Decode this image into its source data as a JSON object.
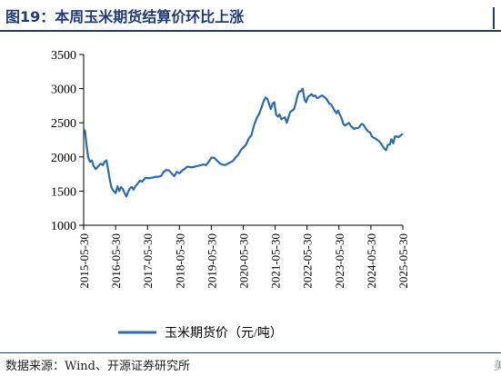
{
  "figure": {
    "title": "图19：本周玉米期货结算价环比上涨",
    "source": "数据来源：Wind、开源证券研究所",
    "edge_mark_bottom": "美"
  },
  "chart_data": {
    "type": "line",
    "title": "",
    "xlabel": "",
    "ylabel": "",
    "ylim": [
      1000,
      3500
    ],
    "yticks": [
      1000,
      1500,
      2000,
      2500,
      3000,
      3500
    ],
    "ytick_labels": [
      "1000",
      "1500",
      "2000",
      "2500",
      "3000",
      "3500"
    ],
    "xlim": [
      "2015-05-30",
      "2025-05-30"
    ],
    "xticks": [
      "2015-05-30",
      "2016-05-30",
      "2017-05-30",
      "2018-05-30",
      "2019-05-30",
      "2020-05-30",
      "2021-05-30",
      "2022-05-30",
      "2023-05-30",
      "2024-05-30",
      "2025-05-30"
    ],
    "grid": false,
    "legend": "bottom",
    "colors": {
      "series": "#2b6cb0",
      "axis": "#000000"
    },
    "series": [
      {
        "name": "玉米期货价（元/吨）",
        "x": [
          "2015-05-30",
          "2015-06-15",
          "2015-07-01",
          "2015-07-20",
          "2015-08-10",
          "2015-09-01",
          "2015-09-20",
          "2015-10-15",
          "2015-11-05",
          "2015-11-25",
          "2015-12-15",
          "2016-01-05",
          "2016-01-25",
          "2016-02-15",
          "2016-03-01",
          "2016-03-20",
          "2016-04-10",
          "2016-05-01",
          "2016-05-30",
          "2016-06-20",
          "2016-07-10",
          "2016-08-01",
          "2016-08-20",
          "2016-09-10",
          "2016-09-30",
          "2016-10-20",
          "2016-11-10",
          "2016-12-01",
          "2016-12-20",
          "2017-01-10",
          "2017-02-01",
          "2017-03-01",
          "2017-04-01",
          "2017-05-01",
          "2017-06-01",
          "2017-07-01",
          "2017-08-01",
          "2017-09-01",
          "2017-10-01",
          "2017-11-01",
          "2017-12-01",
          "2018-01-01",
          "2018-02-01",
          "2018-03-01",
          "2018-04-01",
          "2018-05-01",
          "2018-06-01",
          "2018-07-01",
          "2018-08-01",
          "2018-09-01",
          "2018-10-01",
          "2018-11-01",
          "2018-12-01",
          "2019-01-01",
          "2019-02-01",
          "2019-03-01",
          "2019-04-01",
          "2019-05-01",
          "2019-06-01",
          "2019-07-01",
          "2019-08-01",
          "2019-09-01",
          "2019-10-01",
          "2019-11-01",
          "2019-12-01",
          "2020-01-01",
          "2020-02-01",
          "2020-03-01",
          "2020-04-01",
          "2020-05-01",
          "2020-06-01",
          "2020-07-01",
          "2020-08-01",
          "2020-09-01",
          "2020-10-01",
          "2020-11-01",
          "2020-12-01",
          "2021-01-01",
          "2021-01-20",
          "2021-02-10",
          "2021-03-01",
          "2021-03-20",
          "2021-04-10",
          "2021-05-01",
          "2021-05-20",
          "2021-06-10",
          "2021-07-01",
          "2021-07-20",
          "2021-08-10",
          "2021-09-01",
          "2021-09-20",
          "2021-10-10",
          "2021-11-01",
          "2021-11-20",
          "2021-12-10",
          "2022-01-01",
          "2022-01-20",
          "2022-02-10",
          "2022-03-01",
          "2022-03-20",
          "2022-04-10",
          "2022-05-01",
          "2022-05-20",
          "2022-06-10",
          "2022-07-01",
          "2022-07-20",
          "2022-08-10",
          "2022-09-01",
          "2022-09-20",
          "2022-10-10",
          "2022-11-01",
          "2022-11-20",
          "2022-12-10",
          "2023-01-01",
          "2023-01-20",
          "2023-02-10",
          "2023-03-01",
          "2023-03-20",
          "2023-04-10",
          "2023-05-01",
          "2023-05-20",
          "2023-06-10",
          "2023-07-01",
          "2023-07-20",
          "2023-08-10",
          "2023-09-01",
          "2023-09-20",
          "2023-10-10",
          "2023-11-01",
          "2023-11-20",
          "2023-12-10",
          "2024-01-01",
          "2024-01-20",
          "2024-02-10",
          "2024-03-01",
          "2024-03-20",
          "2024-04-10",
          "2024-05-01",
          "2024-05-20",
          "2024-06-10",
          "2024-07-01",
          "2024-07-20",
          "2024-08-10",
          "2024-09-01",
          "2024-09-20",
          "2024-10-10",
          "2024-11-01",
          "2024-11-20",
          "2024-12-10",
          "2025-01-01",
          "2025-01-20",
          "2025-02-10",
          "2025-03-01",
          "2025-03-20",
          "2025-04-10",
          "2025-05-01",
          "2025-05-30"
        ],
        "values": [
          2410,
          2380,
          2180,
          2000,
          1930,
          1950,
          1870,
          1820,
          1850,
          1880,
          1900,
          1880,
          1930,
          1950,
          1850,
          1700,
          1560,
          1510,
          1470,
          1570,
          1500,
          1560,
          1530,
          1470,
          1420,
          1490,
          1540,
          1560,
          1520,
          1570,
          1600,
          1650,
          1640,
          1690,
          1690,
          1690,
          1700,
          1710,
          1710,
          1720,
          1780,
          1810,
          1800,
          1760,
          1720,
          1780,
          1760,
          1800,
          1830,
          1860,
          1850,
          1850,
          1860,
          1870,
          1880,
          1890,
          1880,
          1930,
          1990,
          1990,
          1950,
          1910,
          1890,
          1880,
          1900,
          1920,
          1940,
          1990,
          2030,
          2100,
          2140,
          2180,
          2270,
          2320,
          2470,
          2570,
          2640,
          2750,
          2820,
          2870,
          2850,
          2780,
          2700,
          2780,
          2800,
          2620,
          2590,
          2620,
          2550,
          2570,
          2580,
          2500,
          2590,
          2660,
          2680,
          2700,
          2780,
          2900,
          2960,
          2960,
          3000,
          2840,
          2800,
          2880,
          2900,
          2920,
          2890,
          2900,
          2860,
          2870,
          2890,
          2900,
          2880,
          2860,
          2820,
          2780,
          2770,
          2730,
          2680,
          2640,
          2680,
          2620,
          2560,
          2480,
          2460,
          2480,
          2500,
          2460,
          2430,
          2410,
          2420,
          2420,
          2440,
          2480,
          2480,
          2440,
          2400,
          2370,
          2360,
          2300,
          2280,
          2270,
          2250,
          2230,
          2200,
          2160,
          2120,
          2100,
          2180,
          2180,
          2260,
          2200,
          2300,
          2300,
          2290,
          2310,
          2340
        ]
      }
    ]
  }
}
